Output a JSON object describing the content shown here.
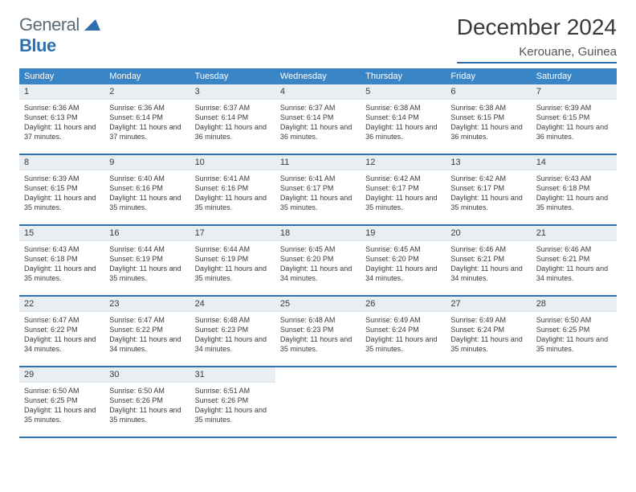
{
  "logo": {
    "word1": "General",
    "word2": "Blue"
  },
  "title": "December 2024",
  "location": "Kerouane, Guinea",
  "colors": {
    "header_bg": "#3a85c6",
    "header_text": "#ffffff",
    "rule": "#2f6fb0",
    "daynum_bg": "#e9eef2",
    "body_text": "#3a3a3a",
    "logo_gray": "#5a6b7a",
    "logo_blue": "#2f6fb0",
    "page_bg": "#ffffff"
  },
  "weekdays": [
    "Sunday",
    "Monday",
    "Tuesday",
    "Wednesday",
    "Thursday",
    "Friday",
    "Saturday"
  ],
  "days": [
    {
      "n": "1",
      "sunrise": "Sunrise: 6:36 AM",
      "sunset": "Sunset: 6:13 PM",
      "daylight": "Daylight: 11 hours and 37 minutes."
    },
    {
      "n": "2",
      "sunrise": "Sunrise: 6:36 AM",
      "sunset": "Sunset: 6:14 PM",
      "daylight": "Daylight: 11 hours and 37 minutes."
    },
    {
      "n": "3",
      "sunrise": "Sunrise: 6:37 AM",
      "sunset": "Sunset: 6:14 PM",
      "daylight": "Daylight: 11 hours and 36 minutes."
    },
    {
      "n": "4",
      "sunrise": "Sunrise: 6:37 AM",
      "sunset": "Sunset: 6:14 PM",
      "daylight": "Daylight: 11 hours and 36 minutes."
    },
    {
      "n": "5",
      "sunrise": "Sunrise: 6:38 AM",
      "sunset": "Sunset: 6:14 PM",
      "daylight": "Daylight: 11 hours and 36 minutes."
    },
    {
      "n": "6",
      "sunrise": "Sunrise: 6:38 AM",
      "sunset": "Sunset: 6:15 PM",
      "daylight": "Daylight: 11 hours and 36 minutes."
    },
    {
      "n": "7",
      "sunrise": "Sunrise: 6:39 AM",
      "sunset": "Sunset: 6:15 PM",
      "daylight": "Daylight: 11 hours and 36 minutes."
    },
    {
      "n": "8",
      "sunrise": "Sunrise: 6:39 AM",
      "sunset": "Sunset: 6:15 PM",
      "daylight": "Daylight: 11 hours and 35 minutes."
    },
    {
      "n": "9",
      "sunrise": "Sunrise: 6:40 AM",
      "sunset": "Sunset: 6:16 PM",
      "daylight": "Daylight: 11 hours and 35 minutes."
    },
    {
      "n": "10",
      "sunrise": "Sunrise: 6:41 AM",
      "sunset": "Sunset: 6:16 PM",
      "daylight": "Daylight: 11 hours and 35 minutes."
    },
    {
      "n": "11",
      "sunrise": "Sunrise: 6:41 AM",
      "sunset": "Sunset: 6:17 PM",
      "daylight": "Daylight: 11 hours and 35 minutes."
    },
    {
      "n": "12",
      "sunrise": "Sunrise: 6:42 AM",
      "sunset": "Sunset: 6:17 PM",
      "daylight": "Daylight: 11 hours and 35 minutes."
    },
    {
      "n": "13",
      "sunrise": "Sunrise: 6:42 AM",
      "sunset": "Sunset: 6:17 PM",
      "daylight": "Daylight: 11 hours and 35 minutes."
    },
    {
      "n": "14",
      "sunrise": "Sunrise: 6:43 AM",
      "sunset": "Sunset: 6:18 PM",
      "daylight": "Daylight: 11 hours and 35 minutes."
    },
    {
      "n": "15",
      "sunrise": "Sunrise: 6:43 AM",
      "sunset": "Sunset: 6:18 PM",
      "daylight": "Daylight: 11 hours and 35 minutes."
    },
    {
      "n": "16",
      "sunrise": "Sunrise: 6:44 AM",
      "sunset": "Sunset: 6:19 PM",
      "daylight": "Daylight: 11 hours and 35 minutes."
    },
    {
      "n": "17",
      "sunrise": "Sunrise: 6:44 AM",
      "sunset": "Sunset: 6:19 PM",
      "daylight": "Daylight: 11 hours and 35 minutes."
    },
    {
      "n": "18",
      "sunrise": "Sunrise: 6:45 AM",
      "sunset": "Sunset: 6:20 PM",
      "daylight": "Daylight: 11 hours and 34 minutes."
    },
    {
      "n": "19",
      "sunrise": "Sunrise: 6:45 AM",
      "sunset": "Sunset: 6:20 PM",
      "daylight": "Daylight: 11 hours and 34 minutes."
    },
    {
      "n": "20",
      "sunrise": "Sunrise: 6:46 AM",
      "sunset": "Sunset: 6:21 PM",
      "daylight": "Daylight: 11 hours and 34 minutes."
    },
    {
      "n": "21",
      "sunrise": "Sunrise: 6:46 AM",
      "sunset": "Sunset: 6:21 PM",
      "daylight": "Daylight: 11 hours and 34 minutes."
    },
    {
      "n": "22",
      "sunrise": "Sunrise: 6:47 AM",
      "sunset": "Sunset: 6:22 PM",
      "daylight": "Daylight: 11 hours and 34 minutes."
    },
    {
      "n": "23",
      "sunrise": "Sunrise: 6:47 AM",
      "sunset": "Sunset: 6:22 PM",
      "daylight": "Daylight: 11 hours and 34 minutes."
    },
    {
      "n": "24",
      "sunrise": "Sunrise: 6:48 AM",
      "sunset": "Sunset: 6:23 PM",
      "daylight": "Daylight: 11 hours and 34 minutes."
    },
    {
      "n": "25",
      "sunrise": "Sunrise: 6:48 AM",
      "sunset": "Sunset: 6:23 PM",
      "daylight": "Daylight: 11 hours and 35 minutes."
    },
    {
      "n": "26",
      "sunrise": "Sunrise: 6:49 AM",
      "sunset": "Sunset: 6:24 PM",
      "daylight": "Daylight: 11 hours and 35 minutes."
    },
    {
      "n": "27",
      "sunrise": "Sunrise: 6:49 AM",
      "sunset": "Sunset: 6:24 PM",
      "daylight": "Daylight: 11 hours and 35 minutes."
    },
    {
      "n": "28",
      "sunrise": "Sunrise: 6:50 AM",
      "sunset": "Sunset: 6:25 PM",
      "daylight": "Daylight: 11 hours and 35 minutes."
    },
    {
      "n": "29",
      "sunrise": "Sunrise: 6:50 AM",
      "sunset": "Sunset: 6:25 PM",
      "daylight": "Daylight: 11 hours and 35 minutes."
    },
    {
      "n": "30",
      "sunrise": "Sunrise: 6:50 AM",
      "sunset": "Sunset: 6:26 PM",
      "daylight": "Daylight: 11 hours and 35 minutes."
    },
    {
      "n": "31",
      "sunrise": "Sunrise: 6:51 AM",
      "sunset": "Sunset: 6:26 PM",
      "daylight": "Daylight: 11 hours and 35 minutes."
    }
  ],
  "trailing_empty": 4
}
